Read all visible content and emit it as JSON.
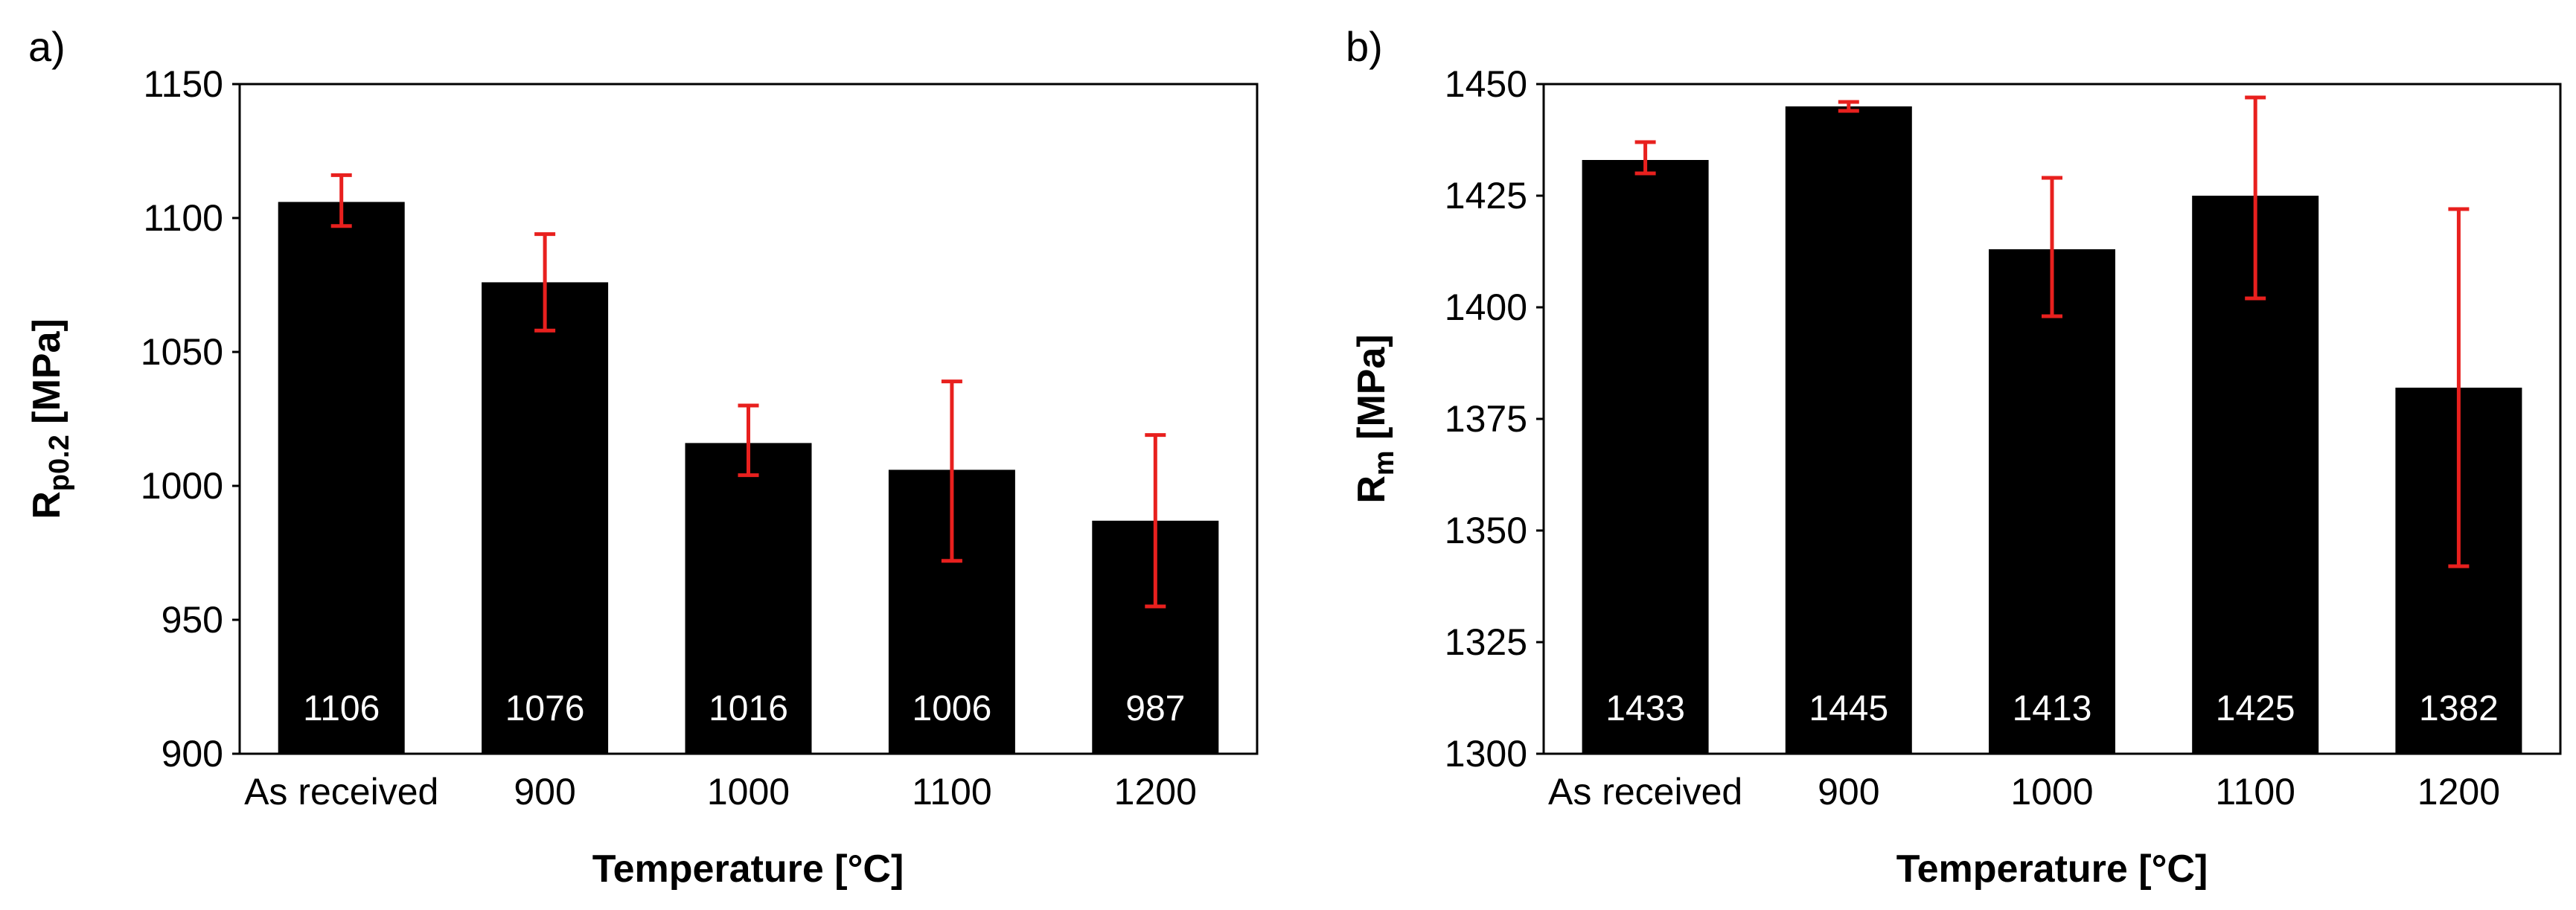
{
  "chart_data": [
    {
      "type": "bar",
      "panel_label": "a)",
      "title": "",
      "categories": [
        "As received",
        "900",
        "1000",
        "1100",
        "1200"
      ],
      "values": [
        1106,
        1076,
        1016,
        1006,
        987
      ],
      "data_labels": [
        "1106",
        "1076",
        "1016",
        "1006",
        "987"
      ],
      "error_low": [
        1097,
        1058,
        1004,
        972,
        955
      ],
      "error_high": [
        1116,
        1094,
        1030,
        1039,
        1019
      ],
      "xlabel": "Temperature [°C]",
      "ylabel_main": "R",
      "ylabel_sub": "p0.2",
      "ylabel_unit": " [MPa]",
      "ylim": [
        900,
        1150
      ],
      "yticks": [
        900,
        950,
        1000,
        1050,
        1100,
        1150
      ],
      "bar_color": "#000000",
      "error_color": "#e8201e",
      "grid": false
    },
    {
      "type": "bar",
      "panel_label": "b)",
      "title": "",
      "categories": [
        "As received",
        "900",
        "1000",
        "1100",
        "1200"
      ],
      "values": [
        1433,
        1445,
        1413,
        1425,
        1382
      ],
      "data_labels": [
        "1433",
        "1445",
        "1413",
        "1425",
        "1382"
      ],
      "error_low": [
        1430,
        1444,
        1398,
        1402,
        1342
      ],
      "error_high": [
        1437,
        1446,
        1429,
        1447,
        1422
      ],
      "xlabel": "Temperature [°C]",
      "ylabel_main": "R",
      "ylabel_sub": "m",
      "ylabel_unit": " [MPa]",
      "ylim": [
        1300,
        1450
      ],
      "yticks": [
        1300,
        1325,
        1350,
        1375,
        1400,
        1425,
        1450
      ],
      "bar_color": "#000000",
      "error_color": "#e8201e",
      "grid": false
    }
  ]
}
